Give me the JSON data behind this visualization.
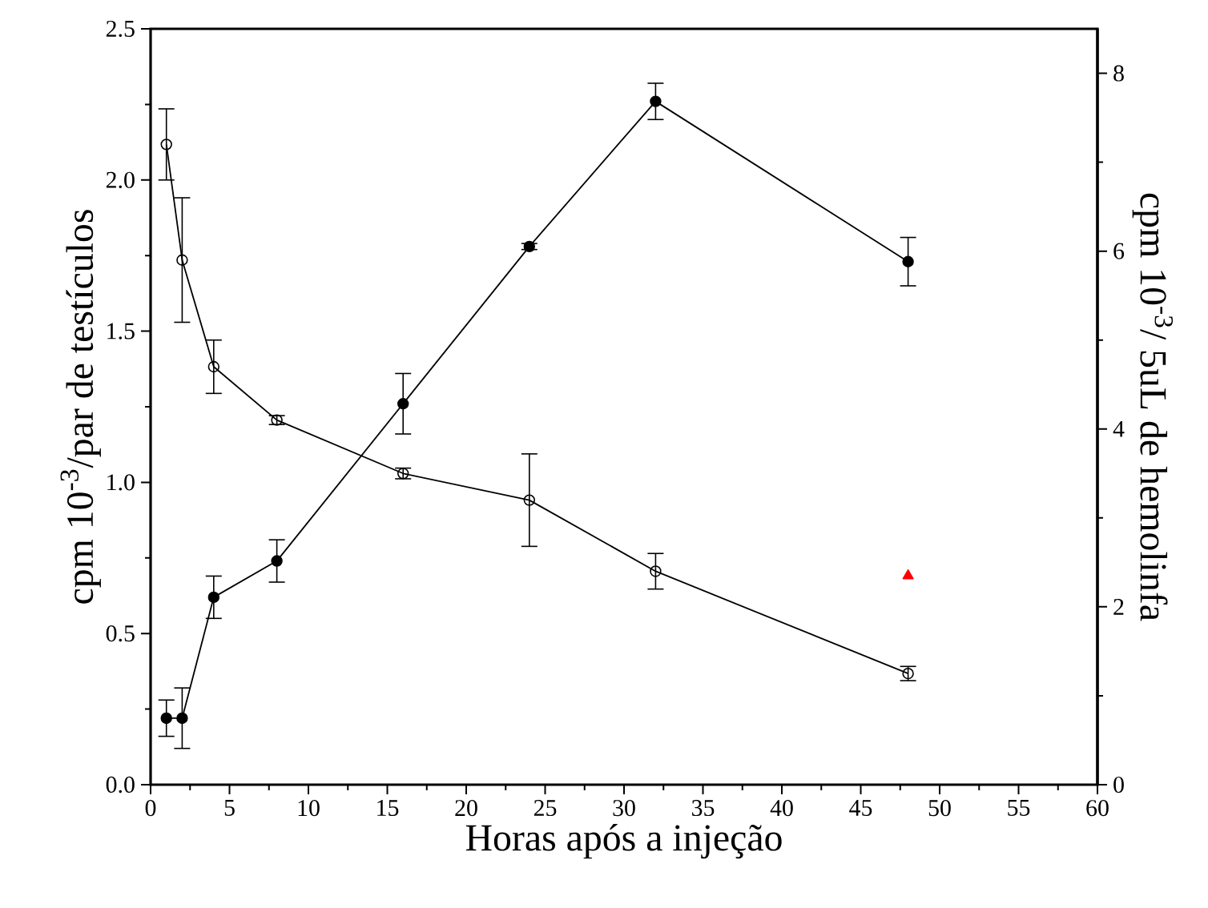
{
  "chart_data": {
    "type": "line",
    "xlabel": "Horas após a injeção",
    "ylabel": "cpm 10$^{-3}$/par de testículos",
    "y2label": "cpm 10$^{-3}$/ 5uL de hemolinfa",
    "x": [
      1,
      2,
      4,
      8,
      16,
      24,
      32,
      48
    ],
    "series": [
      {
        "color": "#000000",
        "marker": "circle",
        "values": [
          0.22,
          0.22,
          0.62,
          0.74,
          1.26,
          1.78,
          2.26,
          1.73
        ],
        "errors": [
          0.06,
          0.1,
          0.07,
          0.07,
          0.1,
          0.01,
          0.06,
          0.08
        ]
      },
      {
        "color": "#000000",
        "marker": "open circle",
        "axis": "y2",
        "values": [
          7.2,
          5.9,
          4.7,
          4.1,
          3.5,
          3.2,
          2.4,
          1.25
        ],
        "errors": [
          0.4,
          0.7,
          0.3,
          0.05,
          0.06,
          0.52,
          0.2,
          0.08
        ]
      },
      {
        "type": "scatter",
        "color": "#ff0000",
        "marker": "triangle",
        "axis": "y2",
        "x": [
          48
        ],
        "values": [
          2.35
        ]
      }
    ],
    "xlim": [
      0,
      60
    ],
    "xticks": [
      0,
      5,
      10,
      15,
      20,
      25,
      30,
      35,
      40,
      45,
      50,
      55,
      60
    ],
    "ylim": [
      0,
      2.5
    ],
    "yticks": [
      {
        "value": 0,
        "label": "0.0"
      },
      0.5,
      {
        "value": 1,
        "label": "1.0"
      },
      1.5,
      {
        "value": 2,
        "label": "2.0"
      },
      2.5
    ],
    "y2lim": [
      0,
      8.5
    ],
    "y2ticks": [
      0,
      2,
      4,
      6,
      8
    ]
  }
}
